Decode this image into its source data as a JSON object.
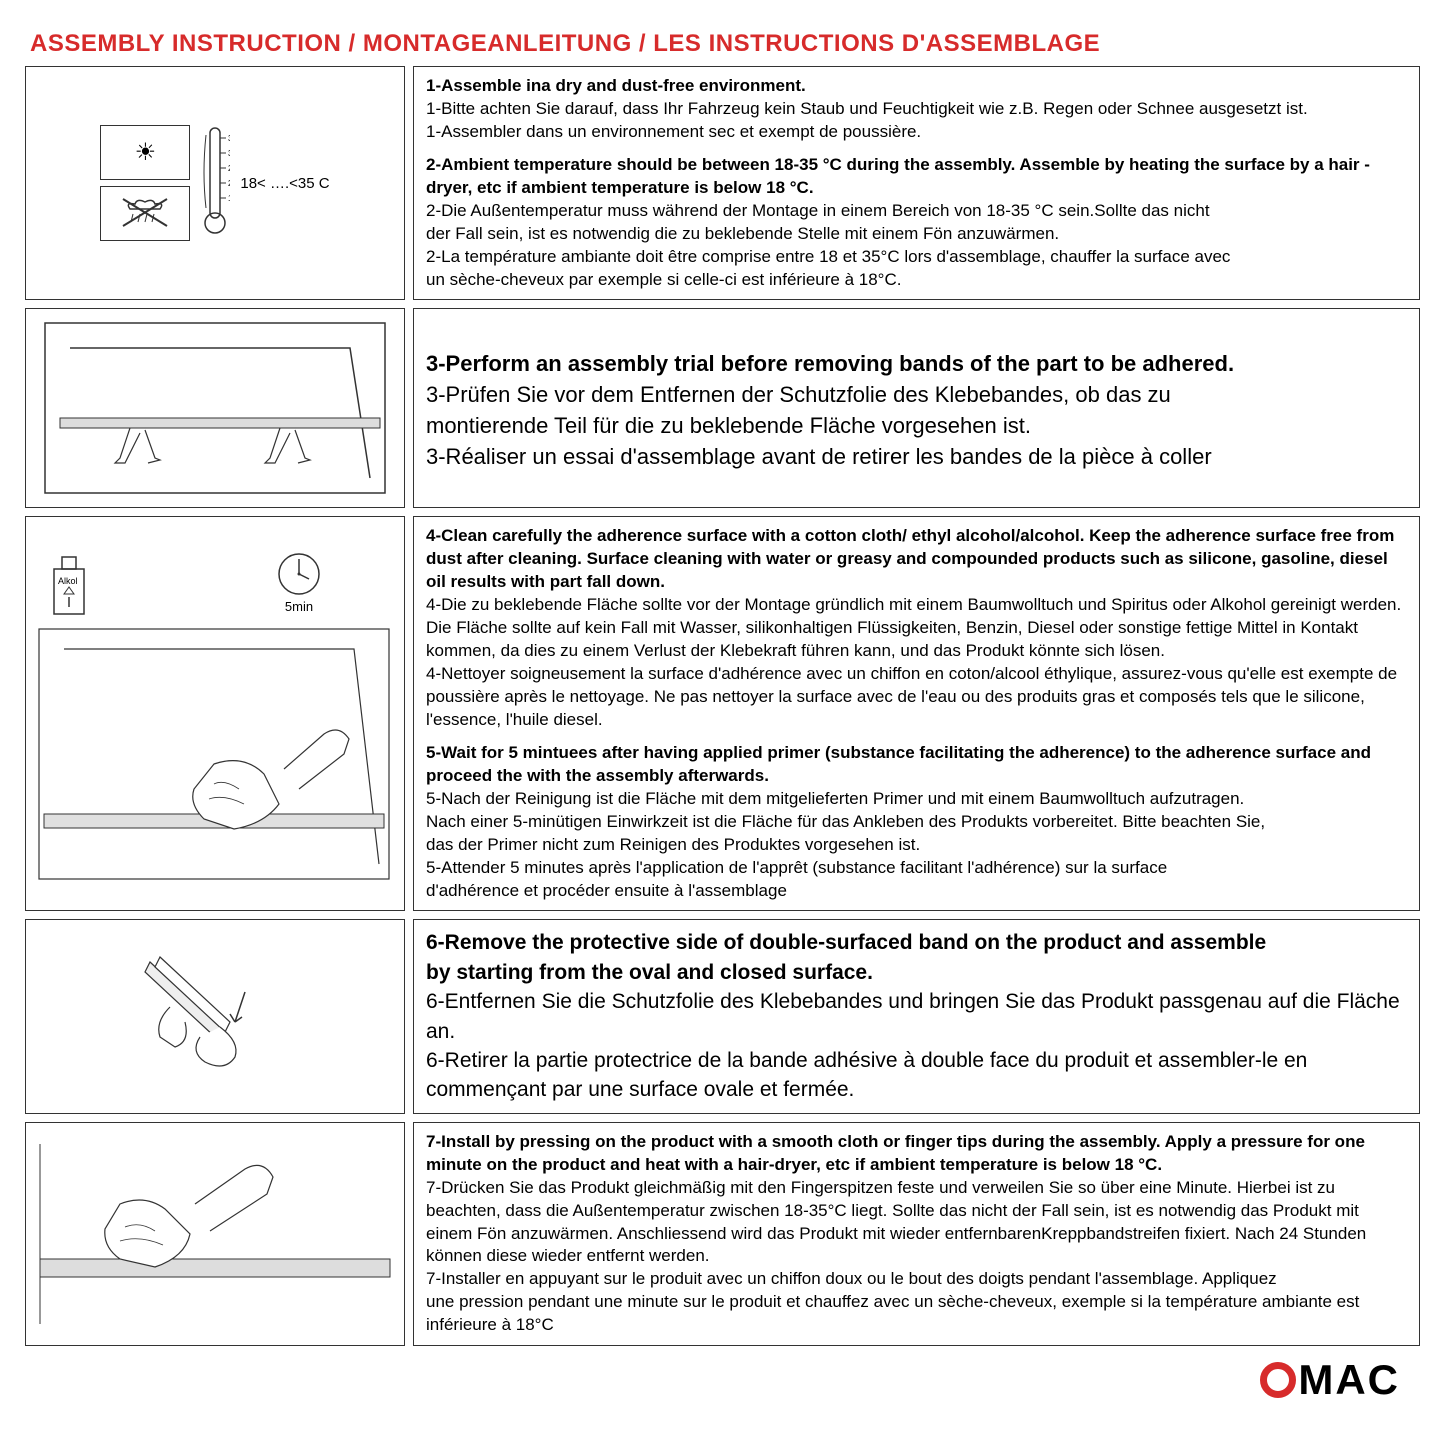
{
  "title": "ASSEMBLY INSTRUCTION / MONTAGEANLEITUNG / LES INSTRUCTIONS D'ASSEMBLAGE",
  "colors": {
    "accent": "#d72b2b",
    "text": "#000000",
    "border": "#333333",
    "bg": "#ffffff"
  },
  "logo": {
    "text_before": "",
    "text_after": "MAC"
  },
  "temp_range": "18< ….<35 C",
  "sections": [
    {
      "lines": [
        {
          "bold": true,
          "text": "1-Assemble ina dry and dust-free environment."
        },
        {
          "bold": false,
          "text": "1-Bitte achten Sie darauf, dass Ihr Fahrzeug kein Staub und Feuchtigkeit wie z.B. Regen oder Schnee ausgesetzt ist."
        },
        {
          "bold": false,
          "text": "1-Assembler dans un environnement sec et exempt de poussière."
        },
        {
          "bold": false,
          "text": ""
        },
        {
          "bold": true,
          "text": "2-Ambient temperature should be between 18-35 °C  during the assembly. Assemble by heating the surface by a hair -dryer, etc if ambient temperature is below 18 °C."
        },
        {
          "bold": false,
          "text": "2-Die Außentemperatur muss während der Montage in einem Bereich von 18-35 °C  sein.Sollte das nicht"
        },
        {
          "bold": false,
          "text": "der Fall sein, ist es notwendig die zu beklebende Stelle mit einem Fön anzuwärmen."
        },
        {
          "bold": false,
          "text": "2-La température ambiante doit être comprise entre 18 et 35°C lors d'assemblage, chauffer la surface avec"
        },
        {
          "bold": false,
          "text": " un sèche-cheveux par exemple si celle-ci est inférieure à 18°C."
        }
      ]
    },
    {
      "lines": [
        {
          "bold": true,
          "text": "3-Perform an assembly trial before removing bands of the part to be adhered."
        },
        {
          "bold": false,
          "text": "3-Prüfen Sie vor dem Entfernen der Schutzfolie des Klebebandes, ob das zu"
        },
        {
          "bold": false,
          "text": "montierende Teil für die zu beklebende Fläche vorgesehen ist."
        },
        {
          "bold": false,
          "text": "3-Réaliser un essai d'assemblage avant de retirer les bandes de la pièce à coller"
        }
      ]
    },
    {
      "lines": [
        {
          "bold": true,
          "text": "4-Clean carefully the adherence surface with a cotton cloth/ ethyl alcohol/alcohol. Keep the adherence surface free from dust after cleaning. Surface cleaning with water or greasy and compounded products such as silicone, gasoline, diesel oil results with part fall down."
        },
        {
          "bold": false,
          "text": "4-Die zu beklebende Fläche sollte vor der Montage gründlich mit einem Baumwolltuch und Spiritus oder Alkohol gereinigt werden. Die Fläche sollte auf kein Fall mit Wasser, silikonhaltigen Flüssigkeiten, Benzin, Diesel oder sonstige fettige Mittel in Kontakt kommen, da dies zu einem Verlust der Klebekraft führen kann, und das Produkt könnte sich lösen."
        },
        {
          "bold": false,
          "text": "4-Nettoyer soigneusement la surface d'adhérence avec un chiffon en coton/alcool éthylique, assurez-vous qu'elle est exempte de poussière après le nettoyage. Ne pas nettoyer la surface avec de l'eau ou des produits gras et composés tels que le silicone, l'essence, l'huile diesel."
        },
        {
          "bold": false,
          "text": ""
        },
        {
          "bold": true,
          "text": "5-Wait for 5 mintuees after having applied primer (substance facilitating the adherence) to the adherence surface and proceed the with the assembly afterwards."
        },
        {
          "bold": false,
          "text": "5-Nach der Reinigung ist die Fläche mit dem mitgelieferten Primer und mit einem Baumwolltuch aufzutragen."
        },
        {
          "bold": false,
          "text": "Nach einer 5-minütigen Einwirkzeit ist die Fläche für das Ankleben des Produkts vorbereitet. Bitte beachten Sie,"
        },
        {
          "bold": false,
          "text": "das der Primer nicht zum Reinigen des Produktes vorgesehen ist."
        },
        {
          "bold": false,
          "text": "5-Attender 5 minutes après l'application de l'apprêt (substance facilitant l'adhérence) sur la surface"
        },
        {
          "bold": false,
          "text": "d'adhérence et procéder ensuite à l'assemblage"
        }
      ]
    },
    {
      "lines": [
        {
          "bold": true,
          "text": "6-Remove the protective side of double-surfaced band on the product and assemble"
        },
        {
          "bold": true,
          "text": "by starting from the oval and closed surface."
        },
        {
          "bold": false,
          "text": "6-Entfernen Sie die Schutzfolie des Klebebandes und bringen Sie das Produkt passgenau auf die Fläche an."
        },
        {
          "bold": false,
          "text": "6-Retirer la partie protectrice de la bande adhésive à double face du produit et assembler-le en commençant par une surface ovale et fermée."
        }
      ]
    },
    {
      "lines": [
        {
          "bold": true,
          "text": "7-Install by pressing on the product with a smooth cloth or finger tips during the assembly. Apply a pressure for one minute on the product and heat with a hair-dryer, etc if ambient temperature is below 18 °C."
        },
        {
          "bold": false,
          "text": "7-Drücken Sie das Produkt gleichmäßig mit den Fingerspitzen feste und verweilen Sie so über eine Minute. Hierbei ist zu beachten, dass die Außentemperatur zwischen 18-35°C liegt. Sollte das nicht der Fall sein, ist es notwendig das Produkt mit einem Fön anzuwärmen. Anschliessend wird das Produkt mit wieder entfernbarenKreppbandstreifen fixiert. Nach 24 Stunden können diese wieder entfernt werden."
        },
        {
          "bold": false,
          "text": "7-Installer en appuyant sur le produit avec un chiffon doux ou le bout des doigts pendant l'assemblage. Appliquez"
        },
        {
          "bold": false,
          "text": " une pression pendant une minute sur le produit et chauffez avec un sèche-cheveux, exemple si la température ambiante est inférieure à 18°C"
        }
      ]
    }
  ]
}
